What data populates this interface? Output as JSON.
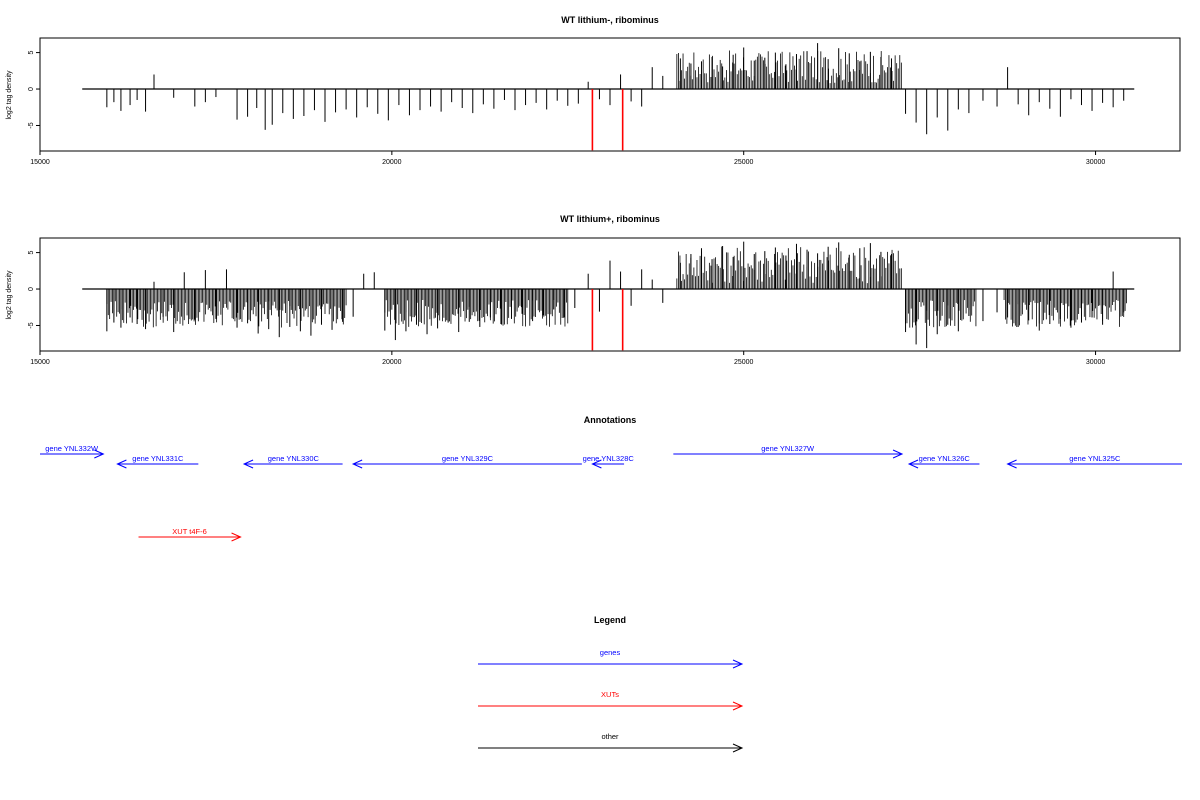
{
  "chart_data": [
    {
      "type": "bar",
      "title": "WT lithium-, ribominus",
      "ylabel": "log2 tag density",
      "xlim": [
        15000,
        31200
      ],
      "ylim": [
        -8.5,
        7
      ],
      "xticks": [
        15000,
        20000,
        25000,
        30000
      ],
      "yticks": [
        -5,
        0,
        5
      ],
      "baseline": [
        15600,
        30550
      ],
      "sense_region": [
        24050,
        27250
      ],
      "marked_positions": [
        22850,
        23280
      ],
      "marked_value": -8.4,
      "bars": {
        "x": [
          15950,
          16050,
          16150,
          16280,
          16380,
          16500,
          16620,
          16900,
          17200,
          17350,
          17500,
          17800,
          17950,
          18080,
          18200,
          18300,
          18450,
          18600,
          18750,
          18900,
          19050,
          19200,
          19350,
          19500,
          19650,
          19800,
          19950,
          20100,
          20250,
          20400,
          20550,
          20700,
          20850,
          21000,
          21150,
          21300,
          21450,
          21600,
          21750,
          21900,
          22050,
          22200,
          22350,
          22500,
          22650,
          22790,
          22950,
          23100,
          23250,
          23400,
          23550,
          23700,
          23850,
          24100,
          24250,
          24400,
          24550,
          24700,
          24850,
          25000,
          25150,
          25300,
          25450,
          25600,
          25750,
          25900,
          26050,
          26200,
          26350,
          26500,
          26650,
          26800,
          26950,
          27100,
          27300,
          27450,
          27600,
          27750,
          27900,
          28050,
          28200,
          28400,
          28600,
          28750,
          28900,
          29050,
          29200,
          29350,
          29500,
          29650,
          29800,
          29950,
          30100,
          30250,
          30400
        ],
        "y": [
          -2.5,
          -1.8,
          -3.0,
          -2.2,
          -1.5,
          -3.1,
          2.0,
          -1.2,
          -2.4,
          -1.8,
          -1.1,
          -4.2,
          -3.8,
          -2.6,
          -5.6,
          -4.9,
          -3.3,
          -4.1,
          -3.7,
          -2.9,
          -4.5,
          -3.2,
          -2.8,
          -3.9,
          -2.5,
          -3.4,
          -4.3,
          -2.2,
          -3.6,
          -2.9,
          -2.4,
          -3.1,
          -1.8,
          -2.6,
          -3.3,
          -2.1,
          -2.7,
          -1.5,
          -2.9,
          -2.2,
          -1.9,
          -2.8,
          -1.6,
          -2.3,
          -2.0,
          1.0,
          -1.4,
          -2.2,
          2.0,
          -1.7,
          -2.4,
          3.0,
          1.8,
          4.2,
          3.5,
          3.8,
          4.4,
          3.1,
          4.7,
          5.7,
          3.9,
          4.3,
          5.0,
          3.4,
          4.8,
          5.2,
          6.3,
          4.1,
          5.6,
          4.9,
          3.8,
          5.1,
          4.4,
          4.2,
          -3.4,
          -4.6,
          -6.2,
          -3.9,
          -5.7,
          -2.8,
          -3.3,
          -1.6,
          -2.4,
          3.0,
          -2.1,
          -3.6,
          -1.8,
          -2.7,
          -3.8,
          -1.4,
          -2.2,
          -3.0,
          -1.9,
          -2.5,
          -1.6
        ]
      }
    },
    {
      "type": "bar",
      "title": "WT lithium+, ribominus",
      "ylabel": "log2 tag density",
      "xlim": [
        15000,
        31200
      ],
      "ylim": [
        -8.5,
        7
      ],
      "xticks": [
        15000,
        20000,
        25000,
        30000
      ],
      "yticks": [
        -5,
        0,
        5
      ],
      "baseline": [
        15600,
        30550
      ],
      "sense_region": [
        24050,
        27250
      ],
      "marked_positions": [
        22850,
        23280
      ],
      "marked_value": -8.4,
      "bars": {
        "x": [
          15950,
          16050,
          16150,
          16280,
          16380,
          16500,
          16620,
          16750,
          16900,
          17050,
          17200,
          17350,
          17500,
          17650,
          17800,
          17950,
          18100,
          18250,
          18400,
          18550,
          18700,
          18850,
          19000,
          19150,
          19300,
          19450,
          19600,
          19750,
          19900,
          20050,
          20200,
          20350,
          20500,
          20650,
          20800,
          20950,
          21100,
          21250,
          21400,
          21550,
          21700,
          21850,
          22000,
          22150,
          22300,
          22450,
          22600,
          22790,
          22950,
          23100,
          23250,
          23400,
          23550,
          23700,
          23850,
          24100,
          24250,
          24400,
          24550,
          24700,
          24850,
          25000,
          25150,
          25300,
          25450,
          25600,
          25750,
          25900,
          26050,
          26200,
          26350,
          26500,
          26650,
          26800,
          26950,
          27100,
          27300,
          27450,
          27600,
          27750,
          27900,
          28050,
          28200,
          28400,
          28600,
          28750,
          28900,
          29050,
          29200,
          29350,
          29500,
          29650,
          29800,
          29950,
          30100,
          30250,
          30400
        ],
        "y": [
          -5.8,
          -4.6,
          -5.3,
          -3.9,
          -4.8,
          -5.5,
          1.0,
          -3.8,
          -5.9,
          2.3,
          -4.2,
          2.6,
          -4.1,
          2.7,
          -5.3,
          -4.7,
          -6.1,
          -5.5,
          -6.6,
          -5.2,
          -5.8,
          -6.4,
          -4.9,
          -5.6,
          -4.5,
          -3.8,
          2.1,
          2.3,
          -5.7,
          -7.0,
          -5.8,
          -4.9,
          -6.2,
          -5.4,
          -4.6,
          -5.9,
          -4.5,
          -5.2,
          -3.9,
          -4.8,
          -4.1,
          -3.4,
          -4.4,
          -3.6,
          -2.8,
          -3.9,
          -2.6,
          2.1,
          -3.1,
          3.9,
          2.4,
          -2.3,
          2.7,
          1.3,
          -1.9,
          3.6,
          4.8,
          5.6,
          4.1,
          5.9,
          4.4,
          6.5,
          4.8,
          5.2,
          5.7,
          4.6,
          6.2,
          5.4,
          4.9,
          5.8,
          6.4,
          4.7,
          5.6,
          6.3,
          5.1,
          4.8,
          -5.9,
          -7.6,
          -8.1,
          -6.2,
          -4.9,
          -5.8,
          -3.7,
          -4.4,
          -3.2,
          -3.9,
          -5.2,
          -4.3,
          -5.7,
          -4.8,
          -4.1,
          -5.3,
          -4.6,
          -3.9,
          -4.9,
          2.4,
          -3.2
        ]
      }
    }
  ],
  "annotations": {
    "title": "Annotations",
    "xlim": [
      15000,
      31200
    ],
    "genes": [
      {
        "label": "gene YNL332W",
        "start": 15000,
        "end": 15900,
        "dir": "right",
        "row": 1
      },
      {
        "label": "gene YNL331C",
        "start": 16100,
        "end": 17250,
        "dir": "left",
        "row": 2
      },
      {
        "label": "gene YNL330C",
        "start": 17900,
        "end": 19300,
        "dir": "left",
        "row": 2
      },
      {
        "label": "gene YNL329C",
        "start": 19450,
        "end": 22700,
        "dir": "left",
        "row": 2
      },
      {
        "label": "gene YNL328C",
        "start": 22850,
        "end": 23300,
        "dir": "left",
        "row": 2
      },
      {
        "label": "gene YNL327W",
        "start": 24000,
        "end": 27250,
        "dir": "right",
        "row": 1
      },
      {
        "label": "gene YNL326C",
        "start": 27350,
        "end": 28350,
        "dir": "left",
        "row": 2
      },
      {
        "label": "gene YNL325C",
        "start": 28750,
        "end": 31250,
        "dir": "left",
        "row": 2
      }
    ],
    "xuts": [
      {
        "label": "XUT t4F-6",
        "start": 16400,
        "end": 17850,
        "dir": "right"
      }
    ]
  },
  "legend": {
    "title": "Legend",
    "items": [
      {
        "label": "genes",
        "color": "#0000ff"
      },
      {
        "label": "XUTs",
        "color": "#ff0000"
      },
      {
        "label": "other",
        "color": "#000000"
      }
    ]
  },
  "colors": {
    "bar": "#000000",
    "marked": "#ff0000",
    "gene": "#0000ff",
    "xut": "#ff0000",
    "frame": "#000000"
  }
}
